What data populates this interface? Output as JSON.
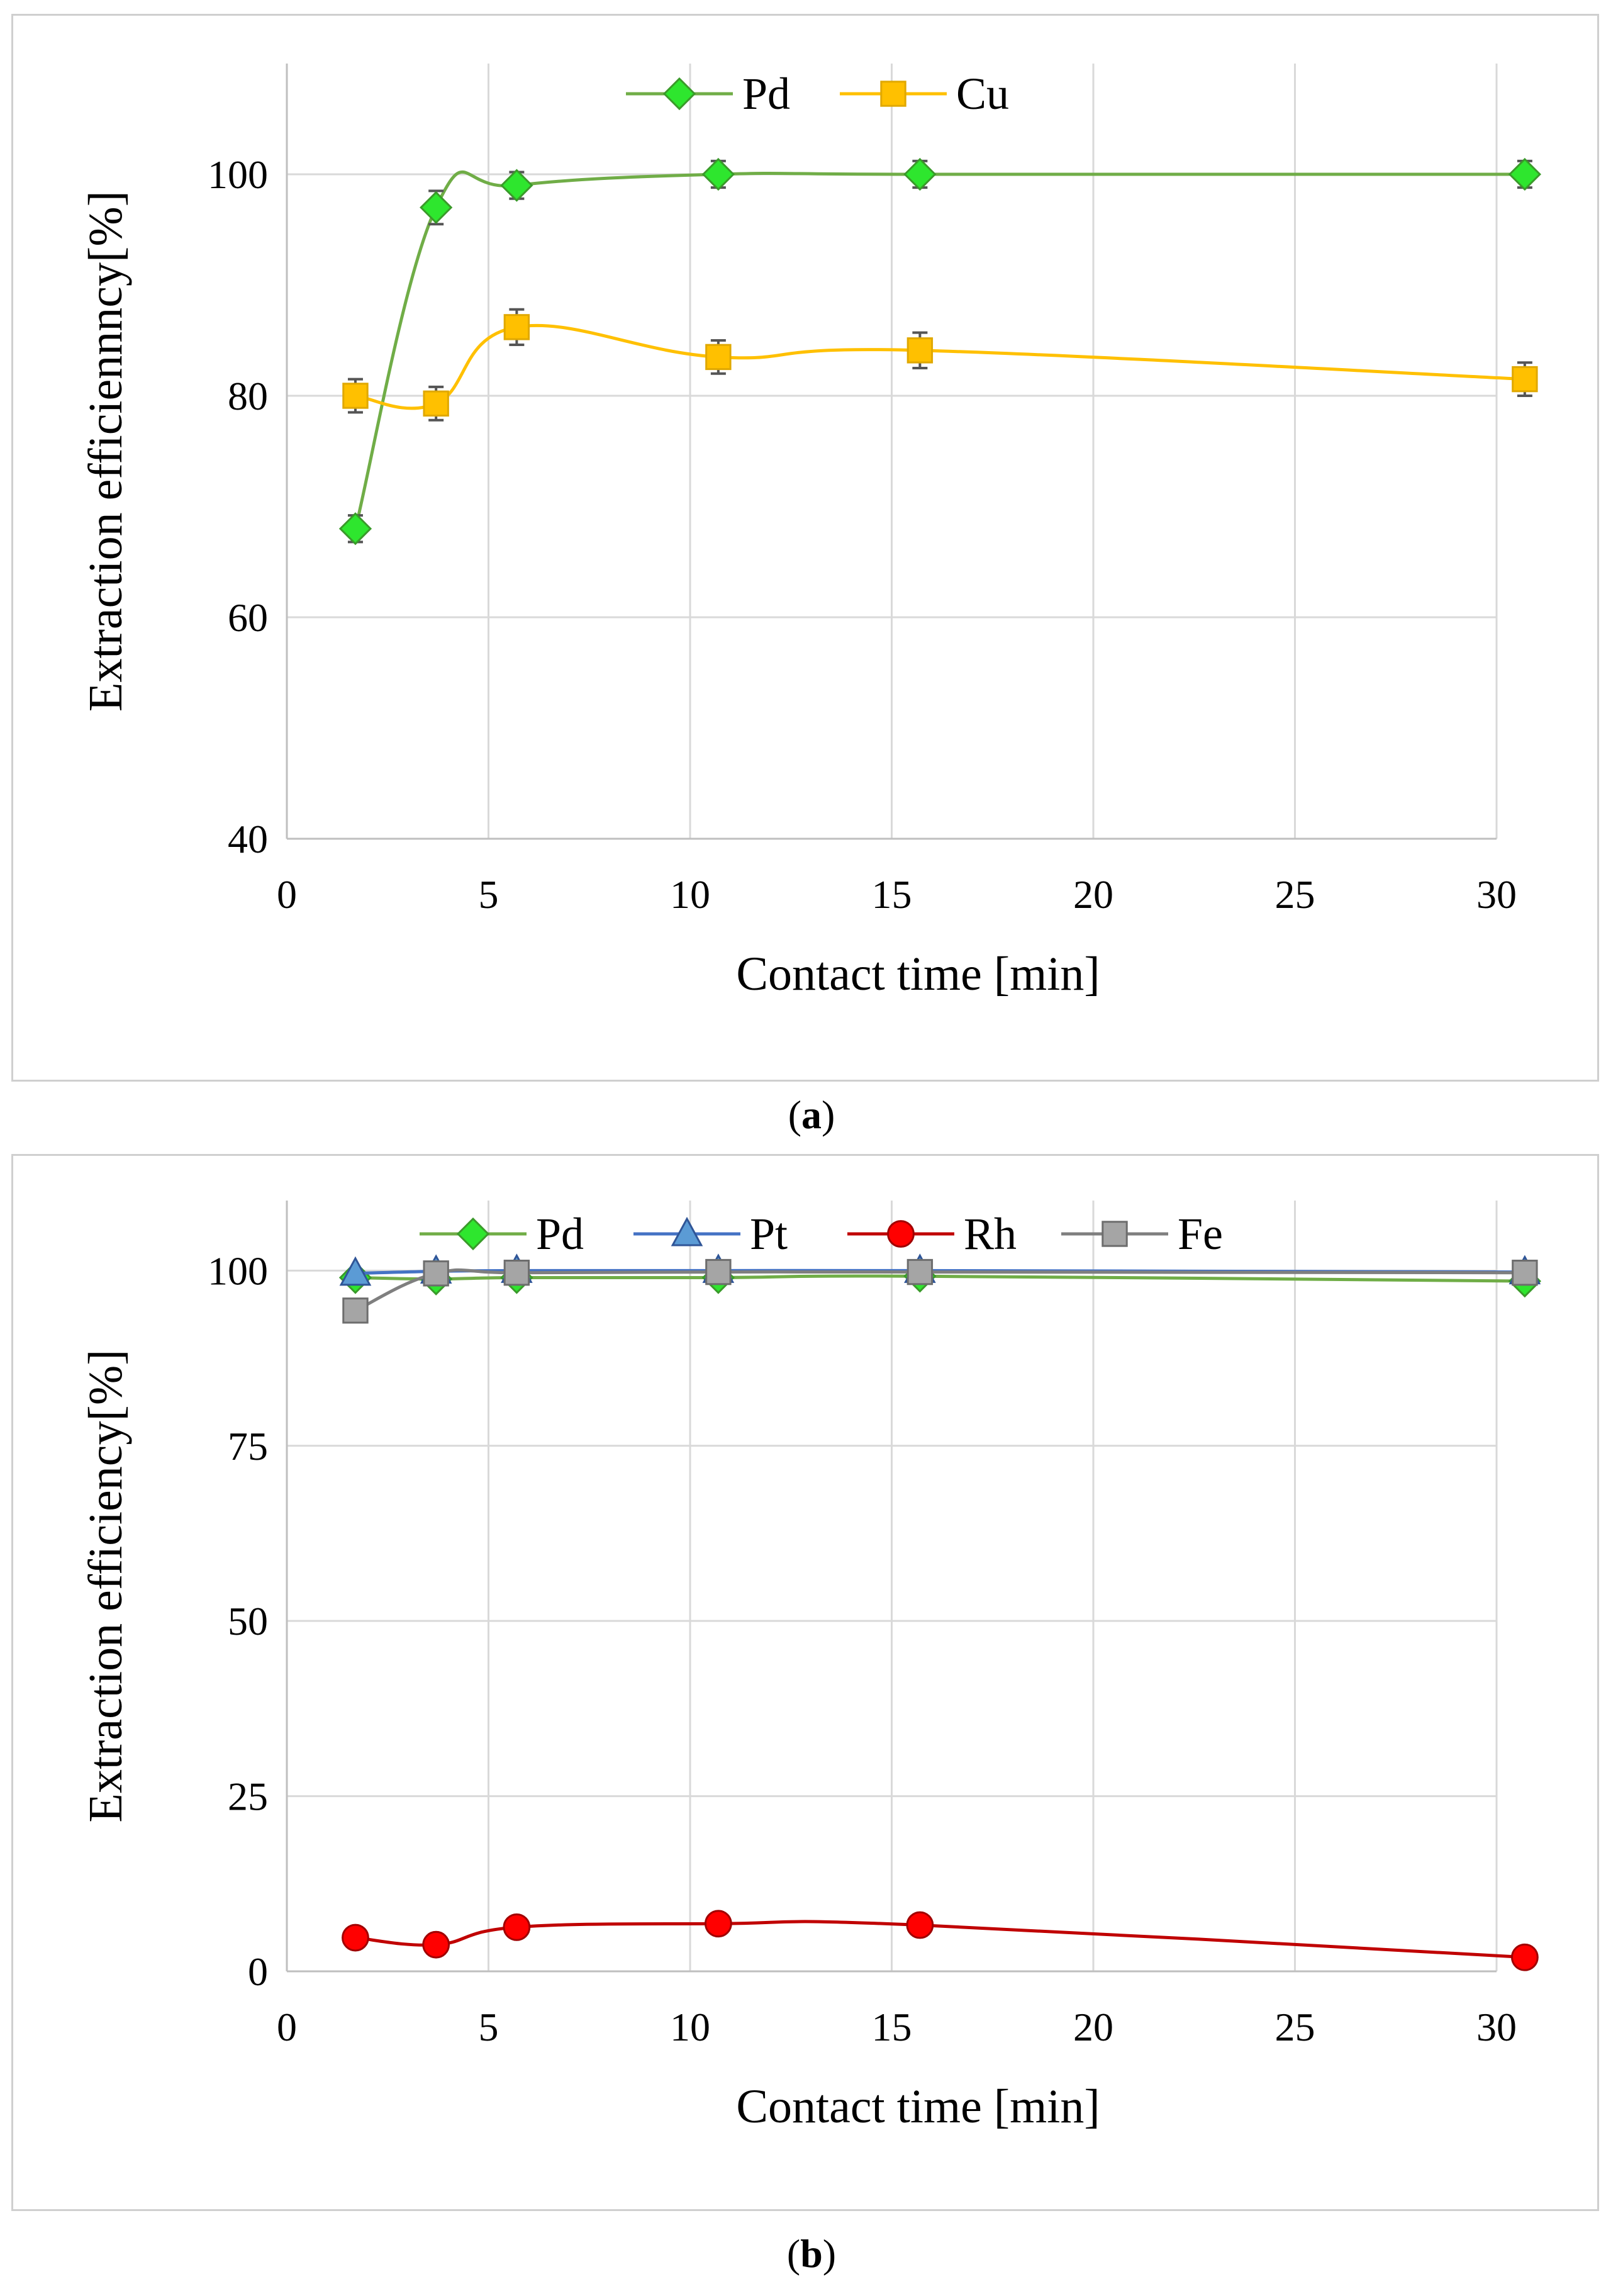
{
  "chart_data": [
    {
      "id": "a",
      "type": "line",
      "caption_letter": "a",
      "xlabel": "Contact time [min]",
      "ylabel": "Extraction efficiennncy[%]",
      "xlim": [
        0,
        30
      ],
      "ylim": [
        40,
        110
      ],
      "xticks": [
        0,
        5,
        10,
        15,
        20,
        25,
        30
      ],
      "yticks": [
        40,
        60,
        80,
        100
      ],
      "grid": true,
      "legend_position": "top-center",
      "error_bars": true,
      "series": [
        {
          "name": "Pd",
          "marker": "diamond",
          "color": "#2ee62e",
          "line_color": "#70ad47",
          "edge_color": "#3a9a2a",
          "x": [
            1.7,
            3.7,
            5.7,
            10.7,
            15.7,
            30.7
          ],
          "y": [
            68,
            97,
            99,
            100,
            100,
            100
          ],
          "err": [
            1.2,
            1.5,
            1.2,
            1.2,
            1.2,
            1.2
          ]
        },
        {
          "name": "Cu",
          "marker": "square",
          "color": "#ffc000",
          "line_color": "#ffc000",
          "edge_color": "#e0a800",
          "x": [
            1.7,
            3.7,
            5.7,
            10.7,
            15.7,
            30.7
          ],
          "y": [
            80,
            79.3,
            86.2,
            83.5,
            84.1,
            81.5
          ],
          "err": [
            1.5,
            1.5,
            1.6,
            1.5,
            1.6,
            1.5
          ]
        }
      ]
    },
    {
      "id": "b",
      "type": "line",
      "caption_letter": "b",
      "xlabel": "Contact time [min]",
      "ylabel": "Extraction efficiency[%]",
      "xlim": [
        0,
        30
      ],
      "ylim": [
        0,
        110
      ],
      "xticks": [
        0,
        5,
        10,
        15,
        20,
        25,
        30
      ],
      "yticks": [
        0,
        25,
        50,
        75,
        100
      ],
      "grid": true,
      "legend_position": "top-center",
      "error_bars": false,
      "series": [
        {
          "name": "Pd",
          "marker": "diamond",
          "color": "#2ee62e",
          "line_color": "#70ad47",
          "edge_color": "#3a9a2a",
          "x": [
            1.7,
            3.7,
            5.7,
            10.7,
            15.7,
            30.7
          ],
          "y": [
            99,
            98.8,
            99,
            99,
            99.2,
            98.5
          ]
        },
        {
          "name": "Pt",
          "marker": "triangle",
          "color": "#5b9bd5",
          "line_color": "#4472c4",
          "edge_color": "#2f5597",
          "x": [
            1.7,
            3.7,
            5.7,
            10.7,
            15.7,
            30.7
          ],
          "y": [
            99.6,
            99.9,
            100,
            100,
            100,
            99.8
          ]
        },
        {
          "name": "Rh",
          "marker": "circle",
          "color": "#ff0000",
          "line_color": "#c00000",
          "edge_color": "#a00000",
          "x": [
            1.7,
            3.7,
            5.7,
            10.7,
            15.7,
            30.7
          ],
          "y": [
            4.8,
            3.8,
            6.3,
            6.8,
            6.6,
            2
          ]
        },
        {
          "name": "Fe",
          "marker": "square",
          "color": "#a5a5a5",
          "line_color": "#7f7f7f",
          "edge_color": "#6d6d6d",
          "x": [
            1.7,
            3.7,
            5.7,
            10.7,
            15.7,
            30.7
          ],
          "y": [
            94.3,
            99.6,
            99.7,
            99.8,
            99.8,
            99.7
          ]
        }
      ]
    }
  ]
}
